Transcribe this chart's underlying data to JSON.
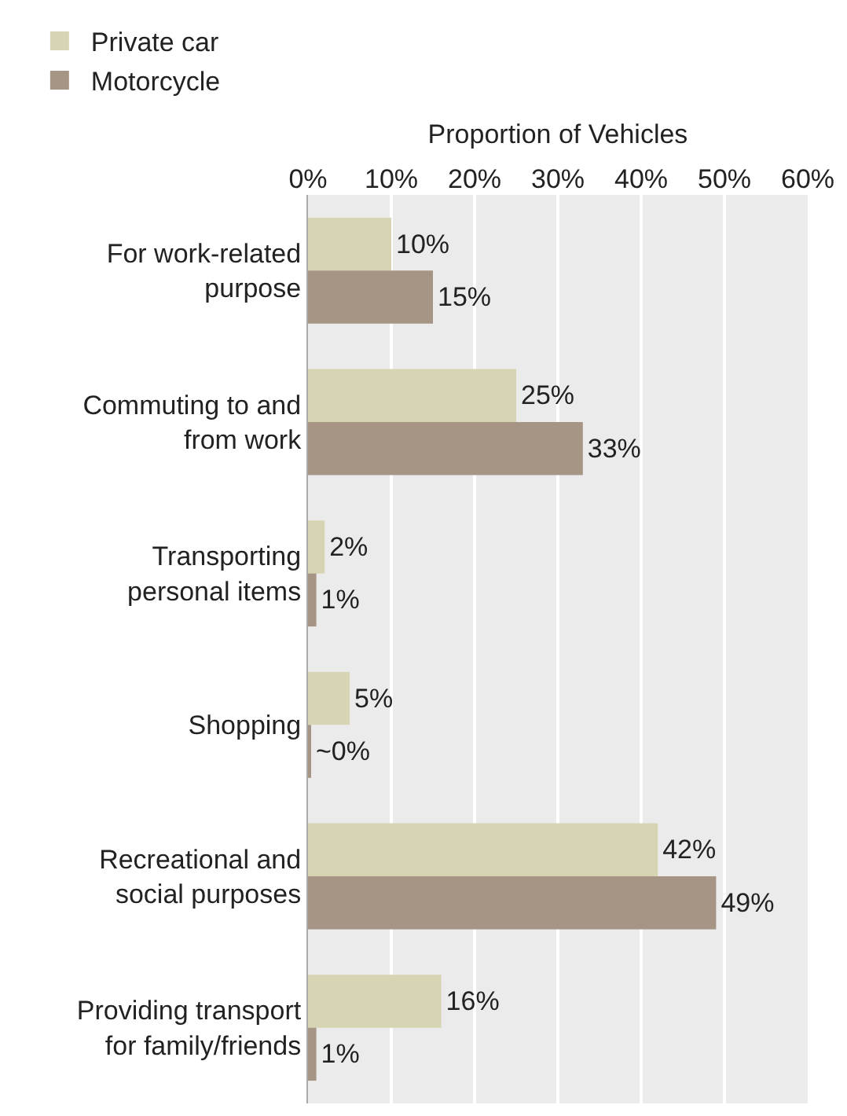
{
  "chart_data": {
    "type": "bar",
    "orientation": "horizontal",
    "xlabel": "Proportion of Vehicles",
    "categories": [
      "For work-related purpose",
      "Commuting to and from work",
      "Transporting personal items",
      "Shopping",
      "Recreational and social purposes",
      "Providing transport for family/friends"
    ],
    "series": [
      {
        "name": "Private car",
        "color": "#d7d4b3",
        "values": [
          10,
          25,
          2,
          5,
          42,
          16
        ],
        "value_labels": [
          "10%",
          "25%",
          "2%",
          "5%",
          "42%",
          "16%"
        ]
      },
      {
        "name": "Motorcycle",
        "color": "#a69585",
        "values": [
          15,
          33,
          1,
          0.2,
          49,
          1
        ],
        "value_labels": [
          "15%",
          "33%",
          "1%",
          "~0%",
          "49%",
          "1%"
        ]
      }
    ],
    "xlim": [
      0,
      60
    ],
    "xticks": [
      {
        "value": 0,
        "label": "0%"
      },
      {
        "value": 10,
        "label": "10%"
      },
      {
        "value": 20,
        "label": "20%"
      },
      {
        "value": 30,
        "label": "30%"
      },
      {
        "value": 40,
        "label": "40%"
      },
      {
        "value": 50,
        "label": "50%"
      },
      {
        "value": 60,
        "label": "60%"
      }
    ],
    "grid": "x",
    "legend": "top left"
  }
}
